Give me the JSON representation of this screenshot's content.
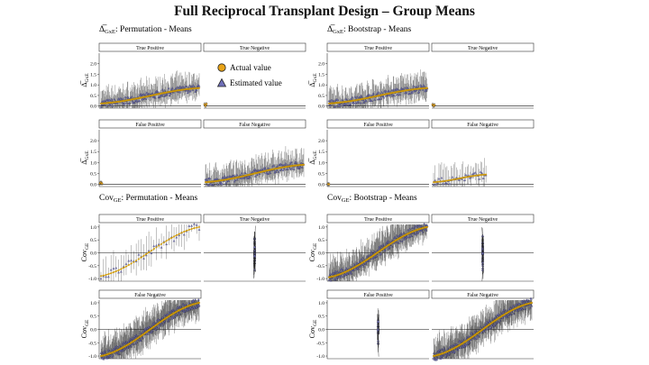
{
  "title": "Full Reciprocal Transplant Design – Group Means",
  "legend": {
    "items": [
      {
        "label": "Actual value",
        "shape": "circle",
        "color": "#e8a317"
      },
      {
        "label": "Estimated value",
        "shape": "triangle",
        "color": "#6f6fb8"
      }
    ]
  },
  "colors": {
    "actual": "#e8a317",
    "estimated": "#6f6fb8",
    "trend": "#d4a400",
    "bar": "#222222"
  },
  "chart_data": [
    {
      "type": "scatter",
      "id": "delta-permutation",
      "title": "Δ̅GxE: Permutation - Means",
      "title_main": "Δ̅",
      "title_sub": "GxE",
      "title_rest": ": Permutation - Means",
      "ylabel_main": "Δ̅",
      "ylabel_sub": "GxE",
      "ylim": [
        -0.1,
        2.5
      ],
      "yticks": [
        0.0,
        0.5,
        1.0,
        1.5,
        2.0
      ],
      "yticklabels": [
        "0.0",
        "0.5",
        "1.0",
        "1.5",
        "2.0"
      ],
      "facets": [
        {
          "label": "True Positive",
          "actual_range": [
            0.12,
            0.85
          ],
          "points": 180
        },
        {
          "label": "True Negative",
          "actual_range": [
            0.0,
            0.0
          ],
          "points": 3
        },
        {
          "label": "False Positive",
          "actual_range": [
            0.0,
            0.05
          ],
          "points": 3
        },
        {
          "label": "False Negative",
          "actual_range": [
            0.1,
            0.9
          ],
          "points": 180
        }
      ]
    },
    {
      "type": "scatter",
      "id": "delta-bootstrap",
      "title": "Δ̅GxE: Bootstrap - Means",
      "title_main": "Δ̅",
      "title_sub": "GxE",
      "title_rest": ": Bootstrap - Means",
      "ylabel_main": "Δ̅",
      "ylabel_sub": "GxE",
      "ylim": [
        -0.1,
        2.5
      ],
      "yticks": [
        0.0,
        0.5,
        1.0,
        1.5,
        2.0
      ],
      "yticklabels": [
        "0.0",
        "0.5",
        "1.0",
        "1.5",
        "2.0"
      ],
      "facets": [
        {
          "label": "True Positive",
          "actual_range": [
            0.12,
            0.85
          ],
          "points": 180
        },
        {
          "label": "True Negative",
          "actual_range": [
            0.0,
            0.0
          ],
          "points": 3
        },
        {
          "label": "False Positive",
          "actual_range": [
            0.0,
            0.0
          ],
          "points": 2
        },
        {
          "label": "False Negative",
          "actual_range": [
            0.1,
            0.45
          ],
          "points": 40
        }
      ]
    },
    {
      "type": "scatter",
      "id": "cov-permutation",
      "title": "CovGE: Permutation - Means",
      "title_main": "Cov",
      "title_sub": "GE",
      "title_rest": ": Permutation - Means",
      "ylabel_main": "Cov",
      "ylabel_sub": "GE",
      "ylim": [
        -1.1,
        1.1
      ],
      "yticks": [
        -1.0,
        -0.5,
        0.0,
        0.5,
        1.0
      ],
      "yticklabels": [
        "-1.0",
        "-0.5",
        "0.0",
        "0.5",
        "1.0"
      ],
      "facets": [
        {
          "label": "True Positive",
          "actual_range": [
            -0.9,
            1.0
          ],
          "points": 40
        },
        {
          "label": "True Negative",
          "actual_range": [
            0.0,
            0.0
          ],
          "points": 40
        },
        {
          "label": "False Negative",
          "actual_range": [
            -1.0,
            1.0
          ],
          "points": 300
        }
      ]
    },
    {
      "type": "scatter",
      "id": "cov-bootstrap",
      "title": "CovGE: Bootstrap - Means",
      "title_main": "Cov",
      "title_sub": "GE",
      "title_rest": ": Bootstrap - Means",
      "ylabel_main": "Cov",
      "ylabel_sub": "GE",
      "ylim": [
        -1.1,
        1.1
      ],
      "yticks": [
        -1.0,
        -0.5,
        0.0,
        0.5,
        1.0
      ],
      "yticklabels": [
        "-1.0",
        "-0.5",
        "0.0",
        "0.5",
        "1.0"
      ],
      "facets": [
        {
          "label": "True Positive",
          "actual_range": [
            -0.95,
            1.0
          ],
          "points": 260
        },
        {
          "label": "True Negative",
          "actual_range": [
            0.0,
            0.0
          ],
          "points": 40
        },
        {
          "label": "False Positive",
          "actual_range": [
            0.0,
            0.0
          ],
          "points": 20
        },
        {
          "label": "False Negative",
          "actual_range": [
            -1.0,
            1.0
          ],
          "points": 300
        }
      ]
    }
  ]
}
